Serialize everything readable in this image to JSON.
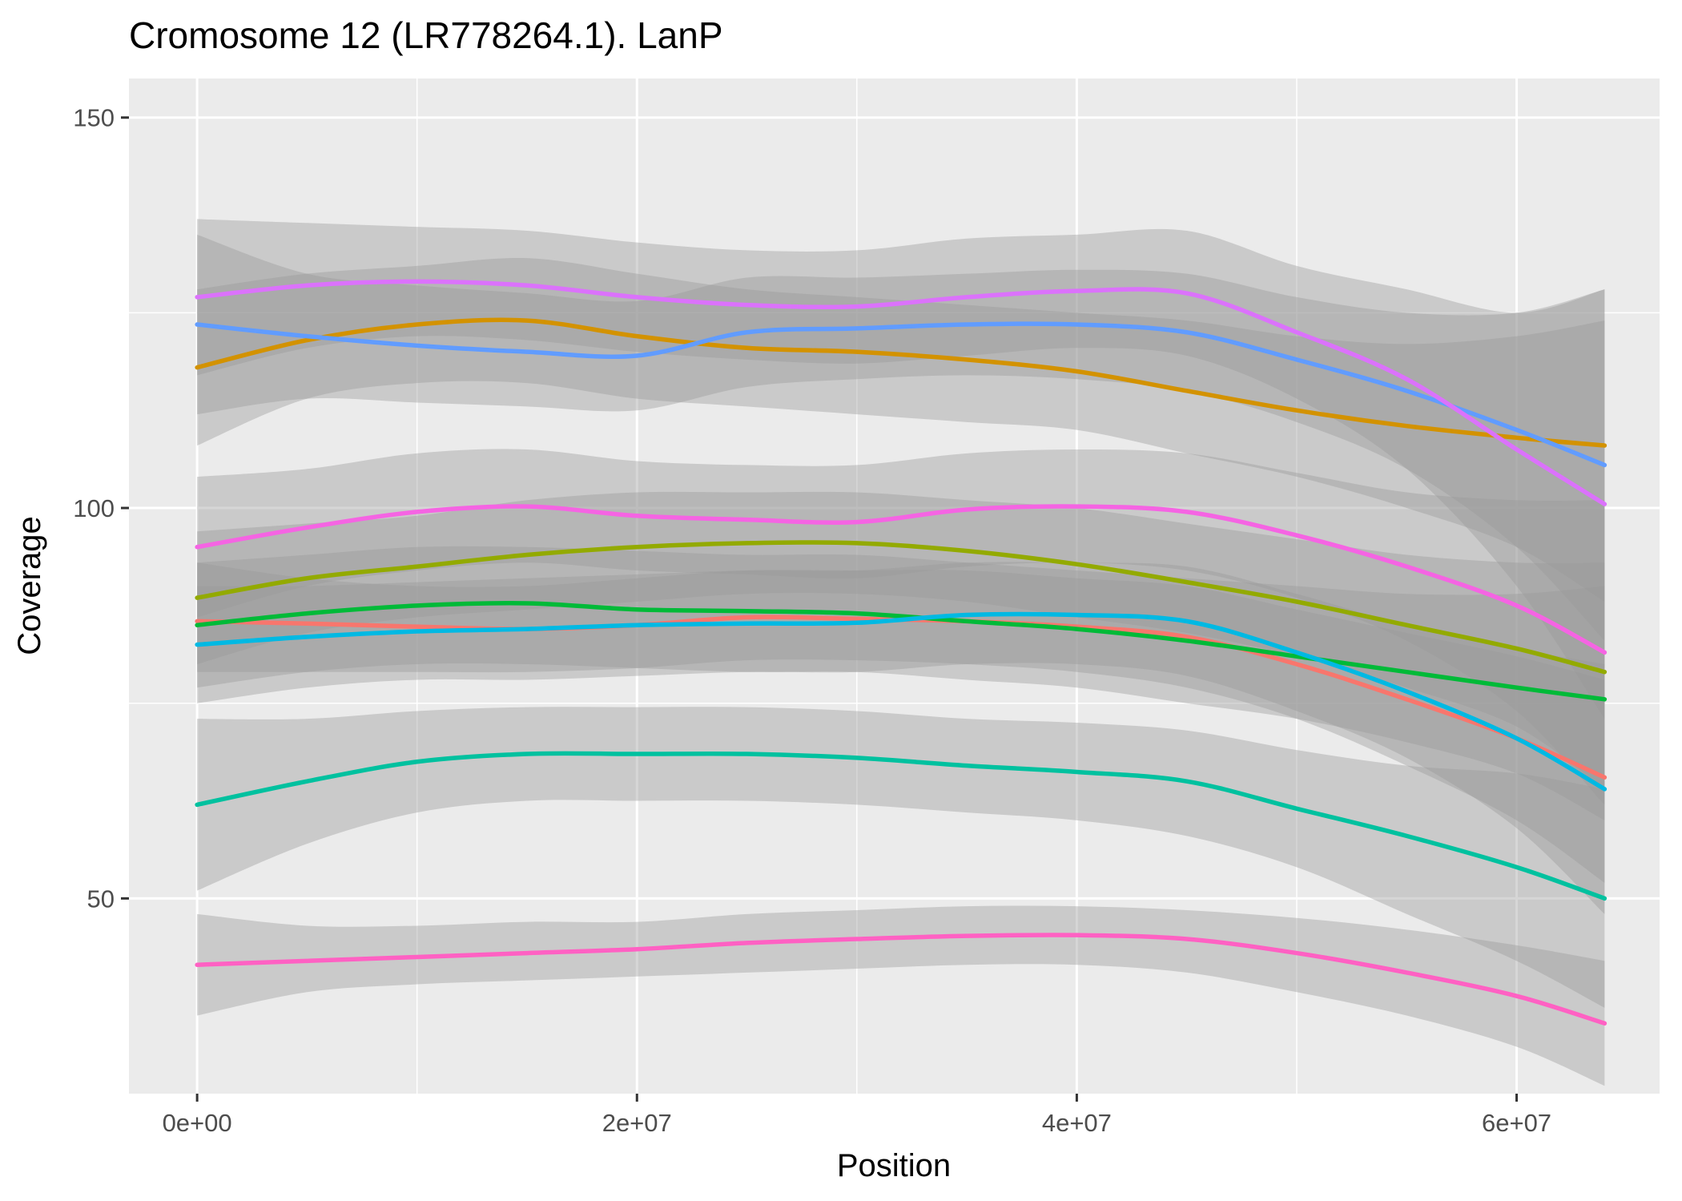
{
  "chart_data": {
    "type": "line",
    "title": "Cromosome 12 (LR778264.1). LanP",
    "xlabel": "Position",
    "ylabel": "Coverage",
    "xlim": [
      -3100000,
      66500000
    ],
    "ylim": [
      25,
      155
    ],
    "x_ticks": [
      0,
      20000000,
      40000000,
      60000000
    ],
    "x_tick_labels": [
      "0e+00",
      "2e+07",
      "4e+07",
      "6e+07"
    ],
    "y_ticks": [
      50,
      100,
      150
    ],
    "y_tick_labels": [
      "50",
      "100",
      "150"
    ],
    "grid": true,
    "legend": "none",
    "x": [
      0,
      5000000,
      10000000,
      15000000,
      20000000,
      25000000,
      30000000,
      35000000,
      40000000,
      45000000,
      50000000,
      55000000,
      60000000,
      64000000
    ],
    "series": [
      {
        "color": "#F8766D",
        "values": [
          85.5,
          85.2,
          84.8,
          84.5,
          85.0,
          86.0,
          85.8,
          85.5,
          84.8,
          83.5,
          80.0,
          75.5,
          70.5,
          65.5
        ],
        "lower": [
          79,
          79,
          79,
          79,
          79.5,
          80.5,
          80.5,
          80,
          79,
          77,
          73,
          67,
          60,
          52
        ],
        "upper": [
          93,
          91,
          90,
          90,
          91,
          92,
          92,
          92,
          91,
          90,
          87,
          84,
          81,
          78
        ]
      },
      {
        "color": "#D39200",
        "values": [
          118.0,
          121.5,
          123.5,
          124.0,
          122.0,
          120.5,
          120.0,
          119.0,
          117.5,
          115.0,
          112.5,
          110.5,
          109.0,
          108.0
        ],
        "lower": [
          108,
          114,
          116,
          116,
          114,
          113,
          112,
          111,
          110,
          107,
          104,
          100,
          95,
          88
        ],
        "upper": [
          128,
          130,
          131,
          132,
          130,
          128,
          127,
          126,
          125,
          124,
          122,
          121,
          122,
          124
        ]
      },
      {
        "color": "#93AA00",
        "values": [
          88.5,
          91.0,
          92.5,
          94.0,
          95.0,
          95.5,
          95.5,
          94.5,
          92.8,
          90.5,
          88.0,
          85.0,
          82.0,
          79.0
        ],
        "lower": [
          80,
          84,
          86,
          87,
          88,
          89,
          89,
          88,
          86,
          84,
          81,
          77,
          72,
          64
        ],
        "upper": [
          97,
          98,
          99,
          101,
          102,
          102,
          102,
          101,
          100,
          98,
          96,
          94,
          93,
          93
        ]
      },
      {
        "color": "#00BA38",
        "values": [
          85.0,
          86.5,
          87.5,
          87.8,
          87.0,
          86.8,
          86.5,
          85.5,
          84.5,
          83.0,
          81.0,
          79.0,
          77.0,
          75.5
        ],
        "lower": [
          77,
          79,
          80,
          80,
          79.5,
          79,
          79,
          78,
          77,
          75,
          73,
          70,
          66,
          60
        ],
        "upper": [
          93,
          94,
          95,
          95,
          94.5,
          94,
          94,
          93,
          92,
          91,
          90,
          89,
          89,
          90
        ]
      },
      {
        "color": "#00C19F",
        "values": [
          62.0,
          65.0,
          67.5,
          68.5,
          68.5,
          68.5,
          68.0,
          67.0,
          66.2,
          65.0,
          61.5,
          58.0,
          54.0,
          50.0
        ],
        "lower": [
          51,
          57,
          61,
          62.5,
          62.5,
          62.5,
          62,
          61,
          60,
          58,
          54,
          48,
          42,
          36
        ],
        "upper": [
          73,
          73,
          74,
          74.5,
          74.5,
          74.5,
          74,
          73,
          72.5,
          71.5,
          69,
          67,
          66,
          64
        ]
      },
      {
        "color": "#00B9E3",
        "values": [
          82.5,
          83.5,
          84.2,
          84.5,
          85.0,
          85.2,
          85.3,
          86.3,
          86.3,
          85.5,
          81.5,
          76.5,
          70.5,
          64.0
        ],
        "lower": [
          75,
          77,
          78,
          78,
          78.5,
          79,
          79,
          80,
          80,
          78.5,
          74,
          68,
          59,
          48
        ],
        "upper": [
          90,
          90,
          90.5,
          91,
          91.5,
          92,
          92,
          93,
          93,
          92.5,
          89,
          85,
          82,
          80
        ]
      },
      {
        "color": "#619CFF",
        "values": [
          123.5,
          122.0,
          120.8,
          120.0,
          119.5,
          122.5,
          123.0,
          123.5,
          123.5,
          122.5,
          119.0,
          115.0,
          110.0,
          105.5
        ],
        "lower": [
          112,
          114,
          113.5,
          113,
          112.5,
          115.5,
          116.5,
          117,
          116.5,
          115,
          111,
          105,
          95,
          83
        ],
        "upper": [
          135,
          130,
          128.5,
          127.5,
          126.5,
          129.5,
          129.5,
          130,
          130.5,
          130,
          127,
          125,
          125,
          128
        ]
      },
      {
        "color": "#DB72FB",
        "values": [
          127.0,
          128.5,
          129.0,
          128.5,
          127.0,
          126.0,
          125.8,
          127.0,
          127.8,
          127.5,
          122.5,
          116.5,
          107.5,
          100.5
        ],
        "lower": [
          117,
          120.5,
          122,
          121.5,
          120,
          119,
          118.5,
          119.5,
          120.5,
          119.5,
          114,
          105,
          90,
          73
        ],
        "upper": [
          137,
          136.5,
          136,
          135.5,
          134,
          133,
          133,
          134.5,
          135,
          135.5,
          131,
          128,
          125,
          128
        ]
      },
      {
        "color": "#FF61C3",
        "values": [
          41.5,
          42.0,
          42.5,
          43.0,
          43.5,
          44.3,
          44.8,
          45.2,
          45.3,
          44.8,
          43.0,
          40.5,
          37.5,
          34.0
        ],
        "lower": [
          35,
          38,
          39,
          39.5,
          40,
          40.5,
          41,
          41.5,
          41.5,
          40.5,
          38,
          35,
          31,
          26
        ],
        "upper": [
          48,
          46.5,
          46.5,
          47,
          47,
          48,
          48.5,
          49,
          49,
          48.5,
          47.5,
          46,
          44,
          42
        ]
      },
      {
        "color": "#F564E3",
        "values": [
          95.0,
          97.5,
          99.5,
          100.2,
          99.0,
          98.5,
          98.2,
          99.8,
          100.2,
          99.5,
          96.5,
          92.5,
          87.5,
          81.5
        ],
        "lower": [
          86,
          90,
          92,
          93,
          92,
          91.5,
          91,
          92.5,
          93,
          92,
          88.5,
          83,
          74,
          62
        ],
        "upper": [
          104,
          105,
          107,
          107.5,
          106,
          105.5,
          105.5,
          107,
          107.5,
          107,
          104.5,
          102,
          101,
          101
        ]
      }
    ]
  }
}
